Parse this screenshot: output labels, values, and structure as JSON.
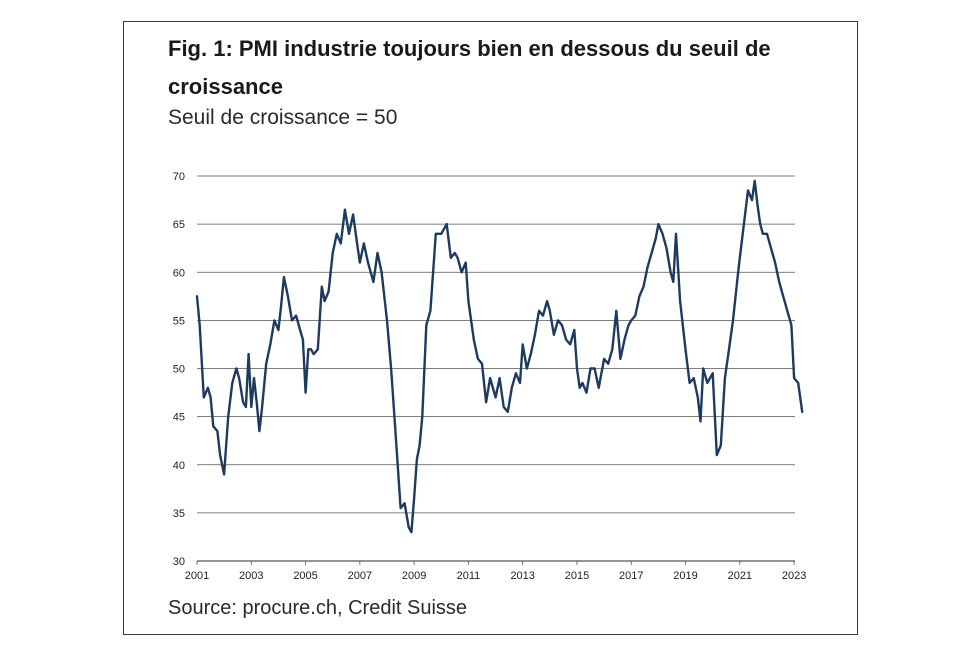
{
  "figure": {
    "title": "Fig. 1: PMI industrie toujours bien en dessous du seuil de croissance",
    "subtitle": "Seuil de croissance = 50",
    "source": "Source: procure.ch, Credit Suisse"
  },
  "colors": {
    "line": "#1f3a5f",
    "grid": "#555555",
    "frame": "#3a3a3a"
  },
  "chart_data": {
    "type": "line",
    "title": "Fig. 1: PMI industrie toujours bien en dessous du seuil de croissance",
    "subtitle": "Seuil de croissance = 50",
    "xlabel": "",
    "ylabel": "",
    "xlim": [
      2001,
      2023.5
    ],
    "ylim": [
      30,
      70
    ],
    "yticks": [
      30,
      35,
      40,
      45,
      50,
      55,
      60,
      65,
      70
    ],
    "xticks": [
      2001,
      2003,
      2005,
      2007,
      2009,
      2011,
      2013,
      2015,
      2017,
      2019,
      2021,
      2023
    ],
    "grid": "horizontal",
    "legend": "none",
    "series": [
      {
        "x": [
          2001.0,
          2001.1,
          2001.25,
          2001.4,
          2001.5,
          2001.6,
          2001.75,
          2001.85,
          2002.0,
          2002.15,
          2002.3,
          2002.45,
          2002.55,
          2002.7,
          2002.8,
          2002.9,
          2003.0,
          2003.1,
          2003.2,
          2003.3,
          2003.4,
          2003.55,
          2003.7,
          2003.85,
          2004.0,
          2004.1,
          2004.2,
          2004.35,
          2004.5,
          2004.65,
          2004.8,
          2004.9,
          2005.0,
          2005.1,
          2005.2,
          2005.3,
          2005.45,
          2005.6,
          2005.7,
          2005.85,
          2006.0,
          2006.15,
          2006.3,
          2006.45,
          2006.6,
          2006.75,
          2006.9,
          2007.0,
          2007.15,
          2007.3,
          2007.5,
          2007.65,
          2007.8,
          2008.0,
          2008.15,
          2008.3,
          2008.5,
          2008.65,
          2008.8,
          2008.9,
          2009.0,
          2009.1,
          2009.2,
          2009.3,
          2009.45,
          2009.6,
          2009.8,
          2010.0,
          2010.2,
          2010.35,
          2010.5,
          2010.6,
          2010.75,
          2010.9,
          2011.0,
          2011.2,
          2011.35,
          2011.5,
          2011.65,
          2011.8,
          2012.0,
          2012.15,
          2012.3,
          2012.45,
          2012.6,
          2012.75,
          2012.9,
          2013.0,
          2013.15,
          2013.3,
          2013.45,
          2013.6,
          2013.75,
          2013.9,
          2014.0,
          2014.15,
          2014.3,
          2014.45,
          2014.6,
          2014.75,
          2014.9,
          2015.0,
          2015.1,
          2015.2,
          2015.35,
          2015.5,
          2015.65,
          2015.8,
          2016.0,
          2016.15,
          2016.3,
          2016.45,
          2016.6,
          2016.75,
          2016.9,
          2017.0,
          2017.15,
          2017.3,
          2017.45,
          2017.6,
          2017.75,
          2017.9,
          2018.0,
          2018.15,
          2018.3,
          2018.45,
          2018.55,
          2018.65,
          2018.8,
          2019.0,
          2019.15,
          2019.3,
          2019.45,
          2019.55,
          2019.65,
          2019.8,
          2020.0,
          2020.15,
          2020.3,
          2020.45,
          2020.6,
          2020.75,
          2020.9,
          2021.0,
          2021.15,
          2021.3,
          2021.45,
          2021.55,
          2021.65,
          2021.75,
          2021.85,
          2022.0,
          2022.15,
          2022.3,
          2022.45,
          2022.6,
          2022.75,
          2022.9,
          2023.0,
          2023.15,
          2023.3
        ],
        "values": [
          57.5,
          54.5,
          47.0,
          48.0,
          47.0,
          44.0,
          43.5,
          41.0,
          39.0,
          45.0,
          48.5,
          50.0,
          49.0,
          46.5,
          46.0,
          51.5,
          46.0,
          49.0,
          46.5,
          43.5,
          46.0,
          50.5,
          52.5,
          55.0,
          54.0,
          56.5,
          59.5,
          57.5,
          55.0,
          55.5,
          54.0,
          53.0,
          47.5,
          52.0,
          52.0,
          51.5,
          52.0,
          58.5,
          57.0,
          58.0,
          62.0,
          64.0,
          63.0,
          66.5,
          64.0,
          66.0,
          63.0,
          61.0,
          63.0,
          61.0,
          59.0,
          62.0,
          60.0,
          55.0,
          50.0,
          44.0,
          35.5,
          36.0,
          33.5,
          33.0,
          36.5,
          40.5,
          42.0,
          45.0,
          54.5,
          56.0,
          64.0,
          64.0,
          65.0,
          61.5,
          62.0,
          61.5,
          60.0,
          61.0,
          57.0,
          53.0,
          51.0,
          50.5,
          46.5,
          49.0,
          47.0,
          49.0,
          46.0,
          45.5,
          48.0,
          49.5,
          48.5,
          52.5,
          50.0,
          51.5,
          53.5,
          56.0,
          55.5,
          57.0,
          56.0,
          53.5,
          55.0,
          54.5,
          53.0,
          52.5,
          54.0,
          50.0,
          48.0,
          48.5,
          47.5,
          50.0,
          50.0,
          48.0,
          51.0,
          50.5,
          52.0,
          56.0,
          51.0,
          53.0,
          54.5,
          55.0,
          55.5,
          57.5,
          58.5,
          60.5,
          62.0,
          63.5,
          65.0,
          64.0,
          62.5,
          60.0,
          59.0,
          64.0,
          57.0,
          52.0,
          48.5,
          49.0,
          47.0,
          44.5,
          50.0,
          48.5,
          49.5,
          41.0,
          42.0,
          49.0,
          52.0,
          55.0,
          59.0,
          61.5,
          65.0,
          68.5,
          67.5,
          69.5,
          67.0,
          65.0,
          64.0,
          64.0,
          62.5,
          61.0,
          59.0,
          57.5,
          56.0,
          54.5,
          49.0,
          48.5,
          45.5
        ]
      }
    ]
  }
}
